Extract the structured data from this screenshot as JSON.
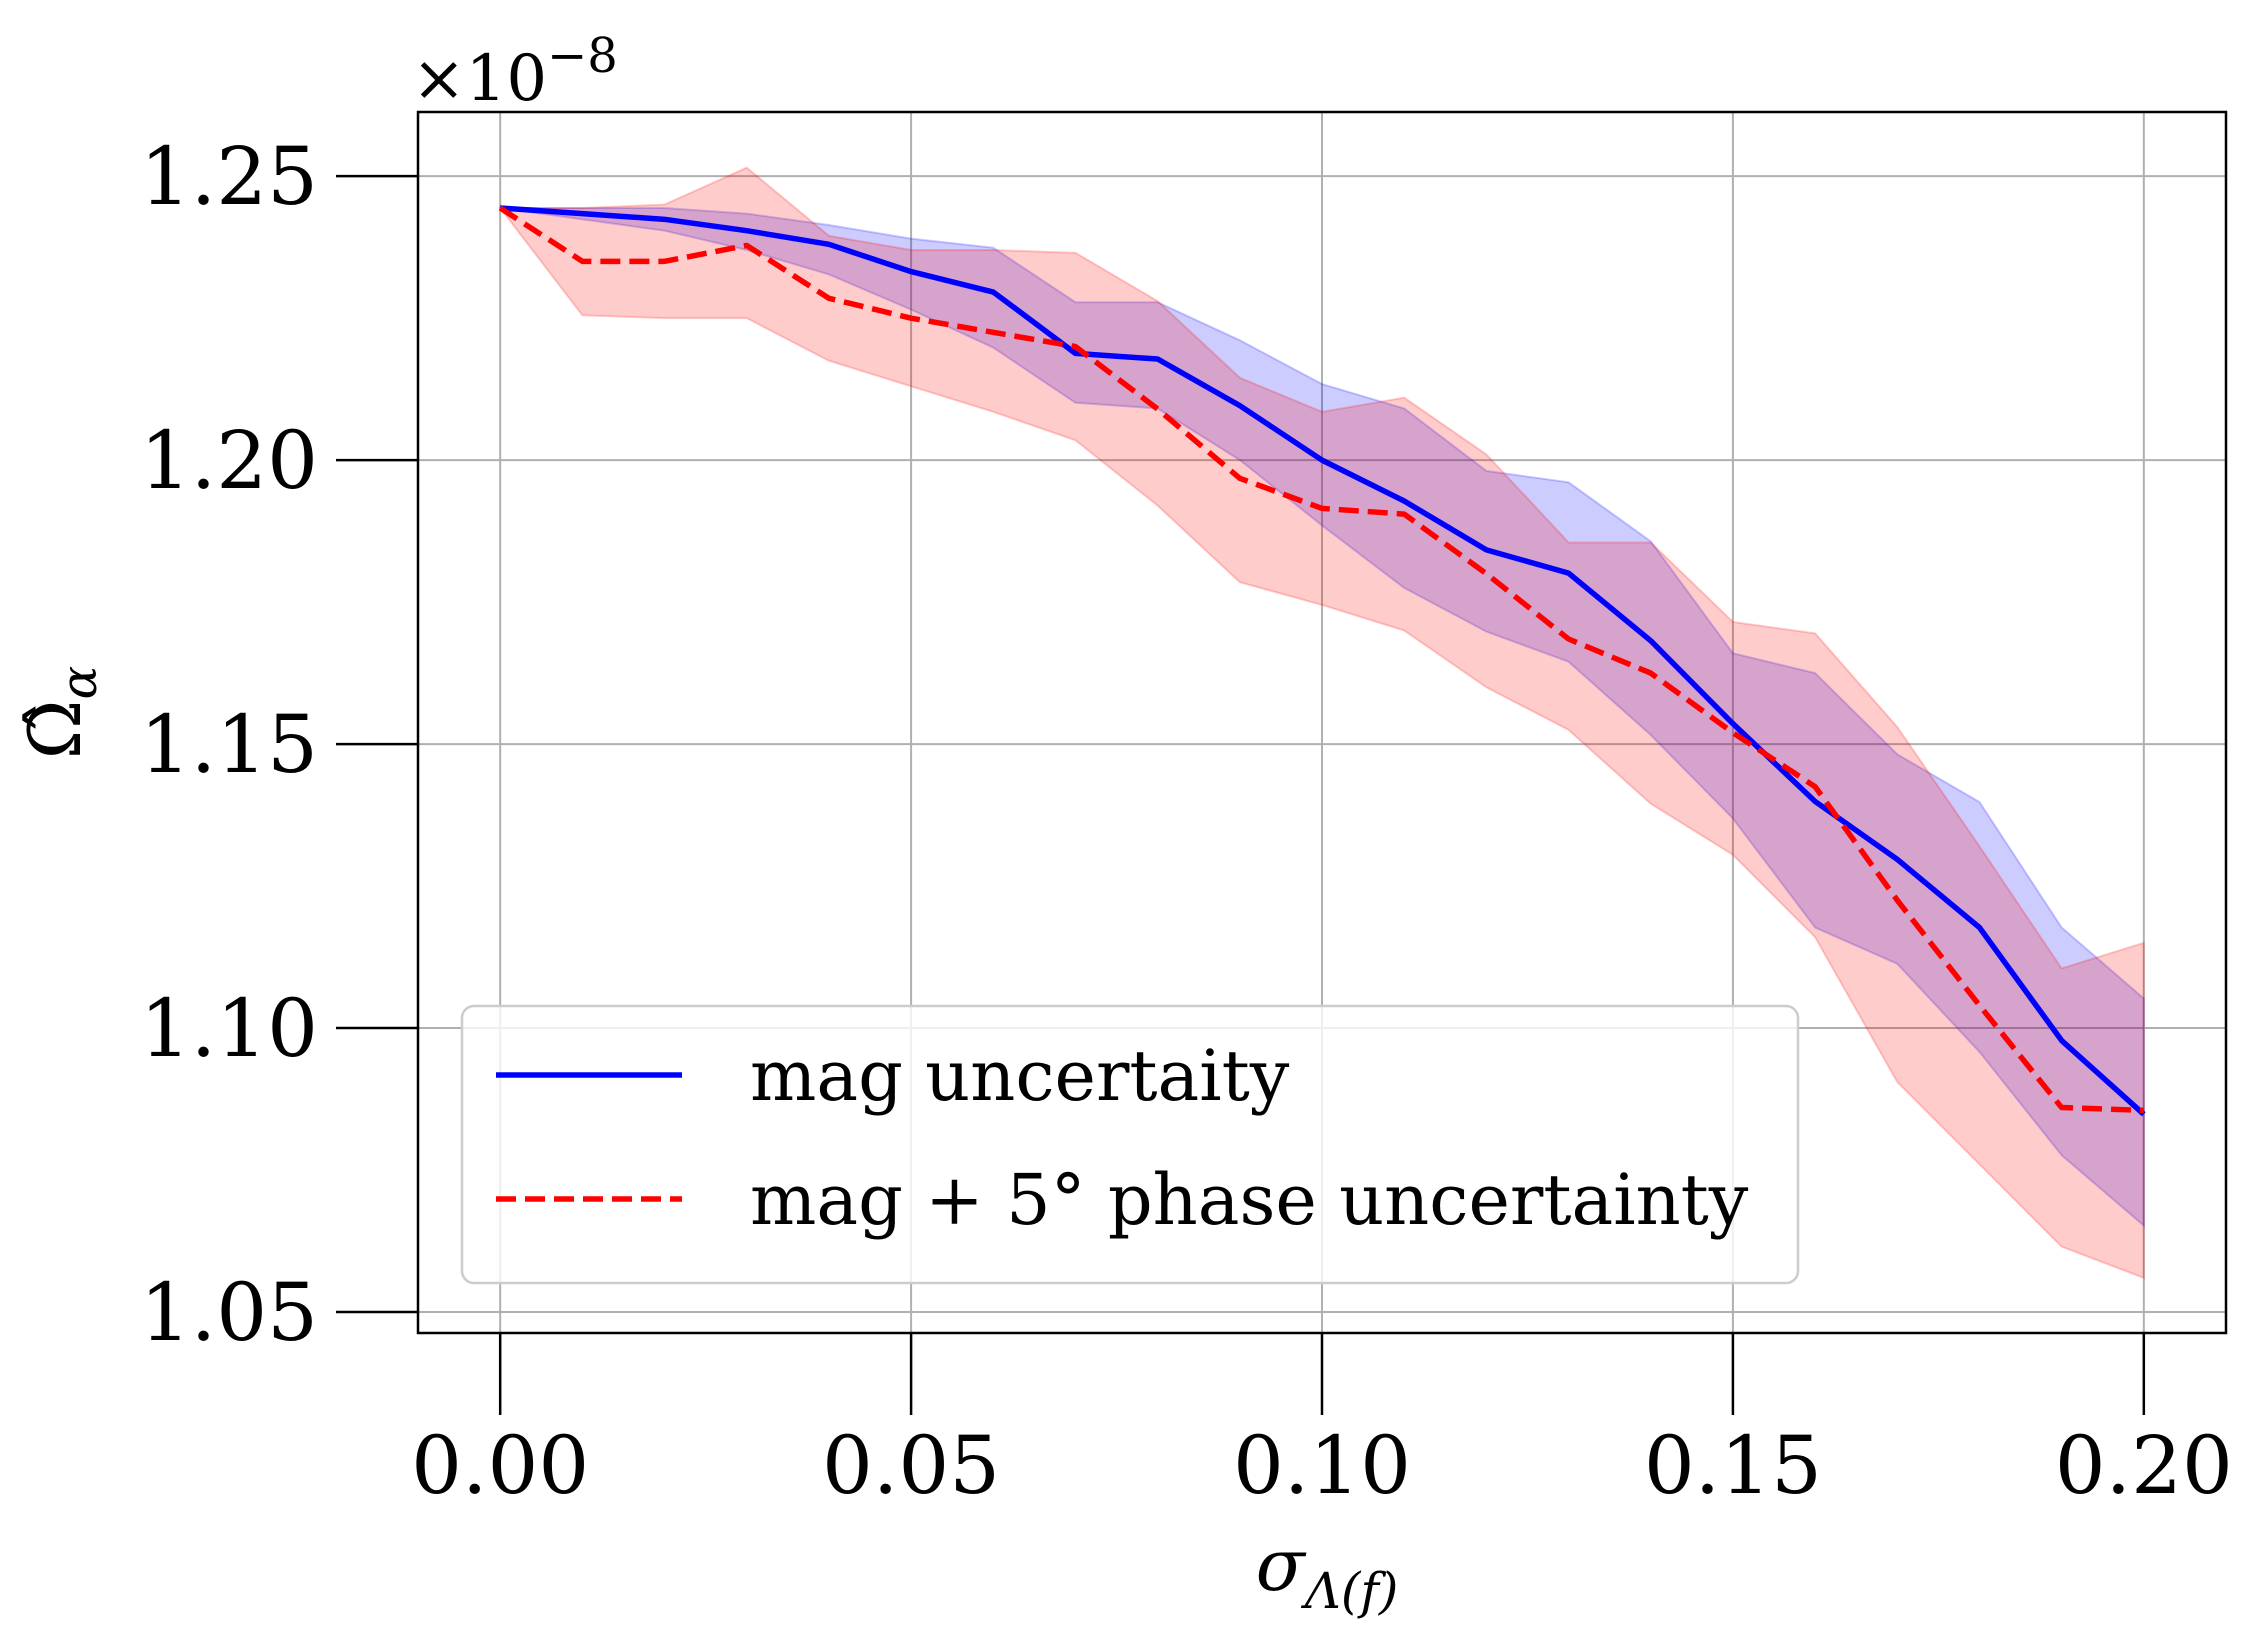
{
  "chart_data": {
    "type": "line",
    "xlabel": "σ",
    "xlabel_sub": "Λ(f)",
    "ylabel": "Ω̂",
    "ylabel_sub": "α",
    "y_offset_label": "×10",
    "y_offset_exp": "−8",
    "xlim": [
      -0.01,
      0.21
    ],
    "ylim": [
      1.0463,
      1.2613
    ],
    "x_ticks": [
      0.0,
      0.05,
      0.1,
      0.15,
      0.2
    ],
    "x_tick_labels": [
      "0.00",
      "0.05",
      "0.10",
      "0.15",
      "0.20"
    ],
    "y_ticks": [
      1.05,
      1.1,
      1.15,
      1.2,
      1.25
    ],
    "y_tick_labels": [
      "1.05",
      "1.10",
      "1.15",
      "1.20",
      "1.25"
    ],
    "grid": true,
    "legend_position": "lower-left",
    "x": [
      0.0,
      0.01,
      0.02,
      0.03,
      0.04,
      0.05,
      0.06,
      0.07,
      0.08,
      0.09,
      0.1,
      0.11,
      0.12,
      0.13,
      0.14,
      0.15,
      0.16,
      0.17,
      0.18,
      0.19,
      0.2
    ],
    "series": [
      {
        "name": "mag uncertaity",
        "color": "#0000ff",
        "linestyle": "solid",
        "fill_color": "#0000ff",
        "values": [
          1.2444,
          1.2434,
          1.2424,
          1.2404,
          1.238,
          1.2332,
          1.2296,
          1.2188,
          1.2178,
          1.2096,
          1.2,
          1.1928,
          1.1842,
          1.1801,
          1.1682,
          1.1536,
          1.1399,
          1.1297,
          1.1177,
          1.0978,
          1.0848
        ],
        "upper": [
          1.2444,
          1.2444,
          1.2444,
          1.2434,
          1.2414,
          1.239,
          1.2374,
          1.2278,
          1.2278,
          1.2211,
          1.2134,
          1.2091,
          1.1981,
          1.1961,
          1.1857,
          1.166,
          1.1625,
          1.1482,
          1.1398,
          1.1177,
          1.1052
        ],
        "lower": [
          1.2444,
          1.2424,
          1.2404,
          1.237,
          1.2327,
          1.2265,
          1.2198,
          1.2101,
          1.2091,
          1.2,
          1.1885,
          1.1775,
          1.1698,
          1.1645,
          1.1516,
          1.1369,
          1.1177,
          1.1113,
          1.0958,
          1.0776,
          1.0652
        ]
      },
      {
        "name": "mag + 5° phase uncertainty",
        "color": "#ff0000",
        "linestyle": "dashed",
        "fill_color": "#ff0000",
        "values": [
          1.2444,
          1.235,
          1.235,
          1.2378,
          1.2285,
          1.225,
          1.2225,
          1.22,
          1.209,
          1.1968,
          1.1915,
          1.1905,
          1.18,
          1.1685,
          1.1625,
          1.152,
          1.1425,
          1.1225,
          1.104,
          1.086,
          1.0855
        ],
        "upper": [
          1.2444,
          1.2444,
          1.245,
          1.2515,
          1.2395,
          1.237,
          1.237,
          1.2365,
          1.228,
          1.2145,
          1.2085,
          1.211,
          1.201,
          1.1855,
          1.1855,
          1.1715,
          1.1695,
          1.153,
          1.132,
          1.1105,
          1.115
        ],
        "lower": [
          1.2444,
          1.2255,
          1.225,
          1.225,
          1.2175,
          1.213,
          1.2085,
          1.2035,
          1.192,
          1.1785,
          1.1745,
          1.17,
          1.16,
          1.1525,
          1.1395,
          1.1305,
          1.116,
          1.0905,
          1.076,
          1.0615,
          1.056
        ]
      }
    ]
  }
}
